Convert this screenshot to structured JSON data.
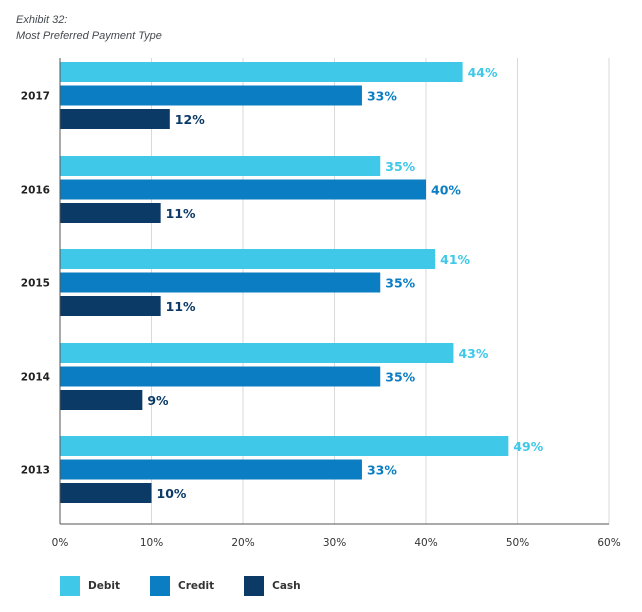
{
  "exhibit": {
    "number": "Exhibit 32:",
    "title": "Most Preferred Payment Type"
  },
  "colors": {
    "Debit": "#40c8e8",
    "Credit": "#0b7dc3",
    "Cash": "#0c3a66"
  },
  "chart_data": {
    "type": "bar",
    "orientation": "horizontal",
    "categories": [
      "2017",
      "2016",
      "2015",
      "2014",
      "2013"
    ],
    "series": [
      {
        "name": "Debit",
        "values": [
          44,
          35,
          41,
          43,
          49
        ]
      },
      {
        "name": "Credit",
        "values": [
          33,
          40,
          35,
          35,
          33
        ]
      },
      {
        "name": "Cash",
        "values": [
          12,
          11,
          11,
          9,
          10
        ]
      }
    ],
    "xlim": [
      0,
      60
    ],
    "xticks": [
      "0%",
      "10%",
      "20%",
      "30%",
      "40%",
      "50%",
      "60%"
    ],
    "value_suffix": "%",
    "grid": true,
    "legend_position": "bottom-left"
  }
}
